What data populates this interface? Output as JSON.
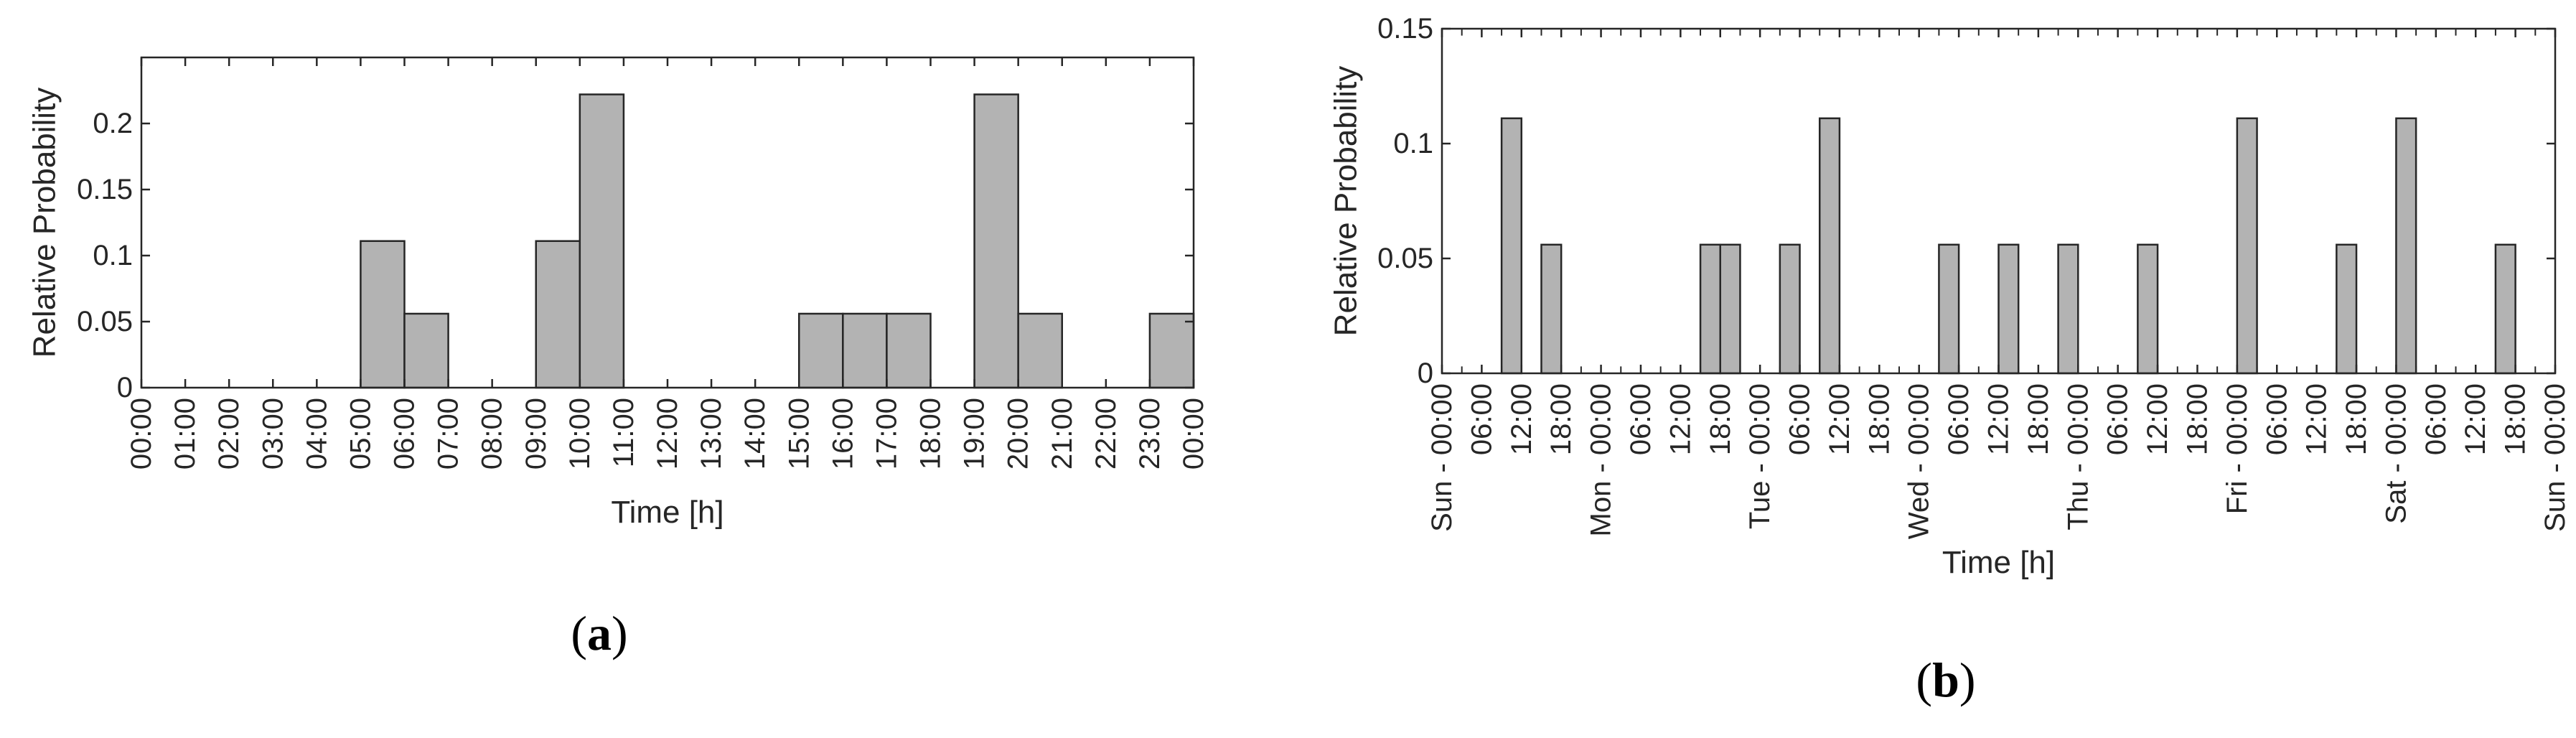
{
  "colors": {
    "bar_fill": "#b3b3b3",
    "bar_stroke": "#262626",
    "axis": "#262626",
    "background": "#ffffff"
  },
  "chart_data": [
    {
      "id": "a",
      "type": "bar",
      "panel_label": "a",
      "xlabel": "Time [h]",
      "ylabel": "Relative Probability",
      "ylim": [
        0,
        0.25
      ],
      "yticks": [
        0,
        0.05,
        0.1,
        0.15,
        0.2
      ],
      "ytick_labels": [
        "0",
        "0.05",
        "0.1",
        "0.15",
        "0.2"
      ],
      "grid": false,
      "xtick_labels": [
        "00:00",
        "01:00",
        "02:00",
        "03:00",
        "04:00",
        "05:00",
        "06:00",
        "07:00",
        "08:00",
        "09:00",
        "10:00",
        "11:00",
        "12:00",
        "13:00",
        "14:00",
        "15:00",
        "16:00",
        "17:00",
        "18:00",
        "19:00",
        "20:00",
        "21:00",
        "22:00",
        "23:00",
        "00:00"
      ],
      "bin_hours": 1,
      "values": [
        0,
        0,
        0,
        0,
        0,
        0.111,
        0.056,
        0,
        0,
        0.111,
        0.222,
        0,
        0,
        0,
        0,
        0.056,
        0.056,
        0.056,
        0,
        0.222,
        0.056,
        0,
        0,
        0.056
      ]
    },
    {
      "id": "b",
      "type": "bar",
      "panel_label": "b",
      "xlabel": "Time [h]",
      "ylabel": "Relative Probability",
      "ylim": [
        0,
        0.15
      ],
      "yticks": [
        0,
        0.05,
        0.1,
        0.15
      ],
      "ytick_labels": [
        "0",
        "0.05",
        "0.1",
        "0.15"
      ],
      "grid": false,
      "xtick_labels": [
        "Sun - 00:00",
        "06:00",
        "12:00",
        "18:00",
        "Mon - 00:00",
        "06:00",
        "12:00",
        "18:00",
        "Tue - 00:00",
        "06:00",
        "12:00",
        "18:00",
        "Wed - 00:00",
        "06:00",
        "12:00",
        "18:00",
        "Thu - 00:00",
        "06:00",
        "12:00",
        "18:00",
        "Fri - 00:00",
        "06:00",
        "12:00",
        "18:00",
        "Sat - 00:00",
        "06:00",
        "12:00",
        "18:00",
        "Sun - 00:00"
      ],
      "bin_hours": 3,
      "bars": [
        {
          "x": 9,
          "value": 0.111
        },
        {
          "x": 15,
          "value": 0.056
        },
        {
          "x": 39,
          "value": 0.056
        },
        {
          "x": 42,
          "value": 0.056
        },
        {
          "x": 51,
          "value": 0.056
        },
        {
          "x": 57,
          "value": 0.111
        },
        {
          "x": 75,
          "value": 0.056
        },
        {
          "x": 84,
          "value": 0.056
        },
        {
          "x": 93,
          "value": 0.056
        },
        {
          "x": 105,
          "value": 0.056
        },
        {
          "x": 120,
          "value": 0.111
        },
        {
          "x": 135,
          "value": 0.056
        },
        {
          "x": 144,
          "value": 0.111
        },
        {
          "x": 159,
          "value": 0.056
        }
      ]
    }
  ]
}
